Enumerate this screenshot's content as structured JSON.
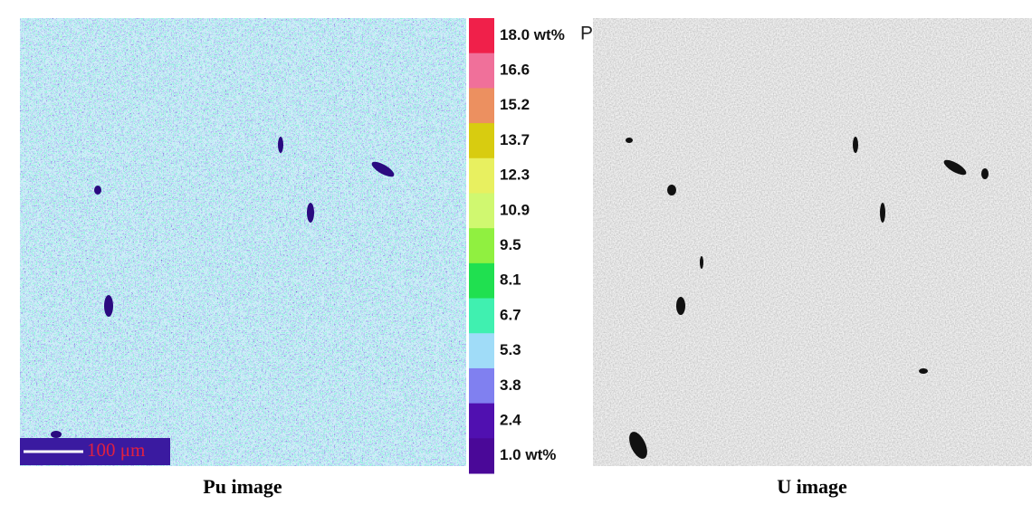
{
  "left_panel": {
    "caption": "Pu image",
    "scale_bar": "100 μm"
  },
  "right_panel": {
    "caption": "U image"
  },
  "legend": {
    "element": "Pu",
    "items": [
      {
        "label": "18.0 wt%",
        "color": "#f0204a"
      },
      {
        "label": "16.6",
        "color": "#f0709a"
      },
      {
        "label": "15.2",
        "color": "#ec9060"
      },
      {
        "label": "13.7",
        "color": "#d8cc10"
      },
      {
        "label": "12.3",
        "color": "#e8f060"
      },
      {
        "label": "10.9",
        "color": "#d0f870"
      },
      {
        "label": "9.5",
        "color": "#90f040"
      },
      {
        "label": "8.1",
        "color": "#20e050"
      },
      {
        "label": "6.7",
        "color": "#40f0b0"
      },
      {
        "label": "5.3",
        "color": "#a0dcf8"
      },
      {
        "label": "3.8",
        "color": "#8080f0"
      },
      {
        "label": "2.4",
        "color": "#5010b0"
      },
      {
        "label": "1.0 wt%",
        "color": "#4a0898"
      }
    ]
  }
}
